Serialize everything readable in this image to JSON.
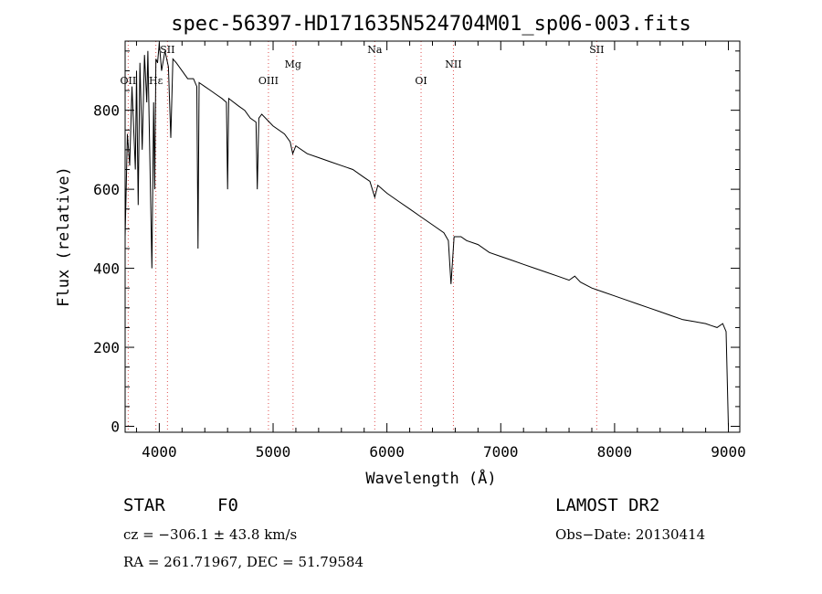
{
  "chart_data": {
    "type": "line",
    "title": "spec-56397-HD171635N524704M01_sp06-003.fits",
    "xlabel": "Wavelength (Å)",
    "ylabel": "Flux (relative)",
    "xlim": [
      3700,
      9100
    ],
    "ylim": [
      -15,
      975
    ],
    "x_ticks": [
      4000,
      5000,
      6000,
      7000,
      8000,
      9000
    ],
    "y_ticks": [
      0,
      200,
      400,
      600,
      800
    ],
    "grid": false,
    "series": [
      {
        "name": "",
        "x": [
          3700,
          3720,
          3740,
          3760,
          3790,
          3800,
          3815,
          3830,
          3850,
          3870,
          3890,
          3900,
          3935,
          3950,
          3960,
          3970,
          3985,
          4000,
          4020,
          4050,
          4080,
          4101,
          4120,
          4150,
          4200,
          4250,
          4300,
          4330,
          4340,
          4350,
          4400,
          4450,
          4500,
          4550,
          4590,
          4600,
          4610,
          4700,
          4750,
          4800,
          4850,
          4861,
          4875,
          4900,
          5000,
          5100,
          5150,
          5172,
          5200,
          5300,
          5400,
          5500,
          5600,
          5700,
          5800,
          5850,
          5893,
          5920,
          6000,
          6100,
          6200,
          6300,
          6400,
          6500,
          6540,
          6563,
          6590,
          6650,
          6700,
          6800,
          6900,
          7000,
          7100,
          7200,
          7300,
          7400,
          7500,
          7600,
          7650,
          7700,
          7800,
          7900,
          8000,
          8100,
          8200,
          8300,
          8400,
          8500,
          8600,
          8700,
          8800,
          8850,
          8900,
          8950,
          8980,
          9000
        ],
        "y": [
          480,
          740,
          660,
          860,
          650,
          900,
          560,
          920,
          700,
          940,
          820,
          950,
          400,
          820,
          600,
          930,
          920,
          970,
          900,
          950,
          910,
          730,
          930,
          920,
          900,
          880,
          880,
          860,
          450,
          870,
          860,
          850,
          840,
          830,
          820,
          600,
          830,
          810,
          800,
          780,
          770,
          600,
          780,
          790,
          760,
          740,
          720,
          690,
          710,
          690,
          680,
          670,
          660,
          650,
          630,
          620,
          580,
          610,
          590,
          570,
          550,
          530,
          510,
          490,
          470,
          360,
          480,
          480,
          470,
          460,
          440,
          430,
          420,
          410,
          400,
          390,
          380,
          370,
          380,
          365,
          350,
          340,
          330,
          320,
          310,
          300,
          290,
          280,
          270,
          265,
          260,
          255,
          250,
          260,
          240,
          0
        ]
      }
    ],
    "line_markers": [
      {
        "label": "OII",
        "x": 3727
      },
      {
        "label": "Hε",
        "x": 3970
      },
      {
        "label": "SII",
        "x": 4072
      },
      {
        "label": "OIII",
        "x": 4959
      },
      {
        "label": "Mg",
        "x": 5175
      },
      {
        "label": "Na",
        "x": 5893
      },
      {
        "label": "OI",
        "x": 6300
      },
      {
        "label": "NII",
        "x": 6584
      },
      {
        "label": "SII",
        "x": 7843
      }
    ]
  },
  "info": {
    "class": "STAR",
    "subclass": "F0",
    "survey": "LAMOST DR2",
    "cz": "cz = −306.1 ± 43.8 km/s",
    "obs_date": "Obs−Date: 20130414",
    "radec": "RA = 261.71967, DEC =  51.79584"
  }
}
